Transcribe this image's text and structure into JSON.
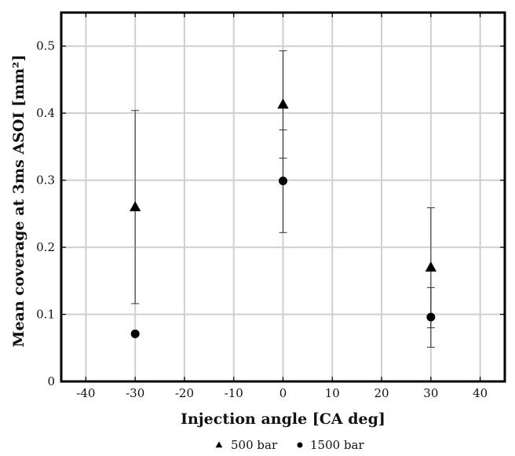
{
  "chart_data": {
    "type": "scatter",
    "xlabel": "Injection angle [CA deg]",
    "ylabel": "Mean coverage at 3ms ASOI [mm²]",
    "xlim": [
      -45,
      45
    ],
    "ylim": [
      0,
      0.55
    ],
    "xticks": [
      -40,
      -30,
      -20,
      -10,
      0,
      10,
      20,
      30,
      40
    ],
    "yticks": [
      0,
      0.1,
      0.2,
      0.3,
      0.4,
      0.5
    ],
    "xtick_labels": [
      "-40",
      "-30",
      "-20",
      "-10",
      "0",
      "10",
      "20",
      "30",
      "40"
    ],
    "ytick_labels": [
      "0",
      "0.1",
      "0.2",
      "0.3",
      "0.4",
      "0.5"
    ],
    "grid": true,
    "legend_position": "bottom",
    "series": [
      {
        "name": "500 bar",
        "marker": "triangle",
        "points": [
          {
            "x": -30,
            "y": 0.26,
            "ylow": 0.116,
            "yhigh": 0.404
          },
          {
            "x": 0,
            "y": 0.413,
            "ylow": 0.333,
            "yhigh": 0.493
          },
          {
            "x": 30,
            "y": 0.17,
            "ylow": 0.08,
            "yhigh": 0.259
          }
        ]
      },
      {
        "name": "1500 bar",
        "marker": "circle",
        "points": [
          {
            "x": -30,
            "y": 0.071
          },
          {
            "x": 0,
            "y": 0.299,
            "ylow": 0.222,
            "yhigh": 0.375
          },
          {
            "x": 30,
            "y": 0.096,
            "ylow": 0.051,
            "yhigh": 0.14
          }
        ]
      }
    ],
    "colors": {
      "marker": "#000000",
      "errorbar": "#333333",
      "grid": "#cfcfcf"
    }
  }
}
